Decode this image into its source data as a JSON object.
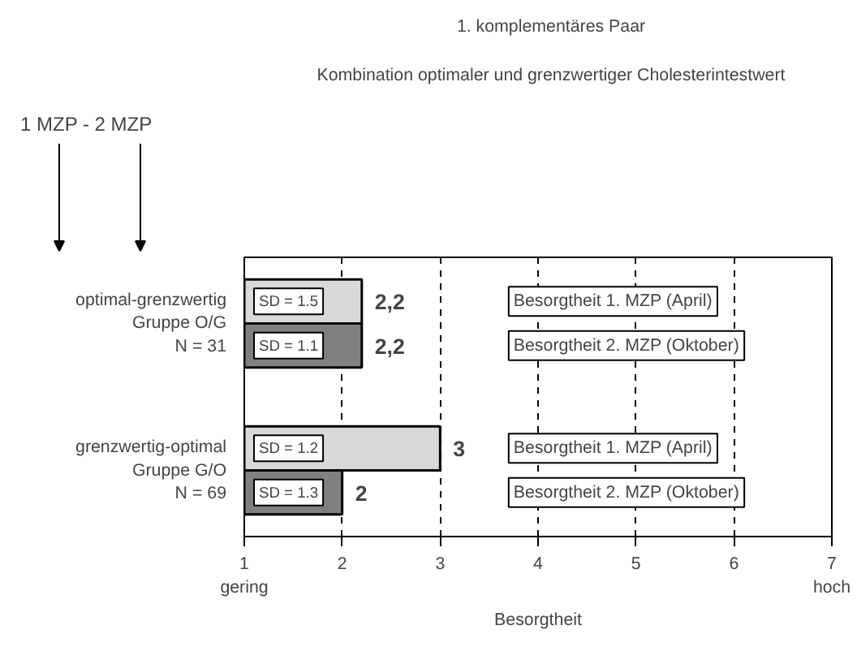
{
  "chart_data": {
    "type": "bar",
    "orientation": "horizontal",
    "title": "1. komplementäres Paar",
    "subtitle": "Kombination optimaler und grenzwertiger Cholesterintestwert",
    "categories": [
      "optimal-grenzwertig\nGruppe O/G\nN = 31",
      "grenzwertig-optimal\nGruppe G/O\nN = 69"
    ],
    "series": [
      {
        "name": "Besorgtheit 1. MZP (April)",
        "color": "#d9d9d9",
        "values": [
          2.2,
          3
        ],
        "value_labels": [
          "2,2",
          "3"
        ]
      },
      {
        "name": "Besorgtheit 2. MZP (Oktober)",
        "color": "#808080",
        "values": [
          2.2,
          2
        ],
        "value_labels": [
          "2,2",
          "2"
        ]
      }
    ],
    "annotations": [
      "1 MZP - 2 MZP",
      "SD = 1.5",
      "SD = 1.2",
      "SD = 1.1",
      "SD = 1.3"
    ],
    "xlim": [
      1,
      7
    ],
    "xticks": [
      {
        "value": 1,
        "label": "1\ngering"
      },
      2,
      3,
      4,
      5,
      6,
      {
        "value": 7,
        "label": "7\nhoch"
      }
    ],
    "xlabel": "Besorgtheit",
    "grid": "x",
    "line_style": "dashed",
    "legend": false
  }
}
